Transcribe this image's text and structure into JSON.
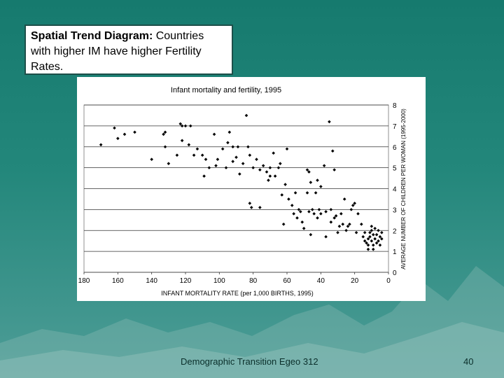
{
  "slide": {
    "title_bold": "Spatial Trend Diagram:",
    "title_rest": " Countries with higher IM have higher Fertility Rates.",
    "footer": "Demographic Transition Egeo 312",
    "page_number": "40",
    "background_color": "#1e8276",
    "accent_color": "#1d4f49"
  },
  "chart_data": {
    "type": "scatter",
    "title": "Infant mortality and fertility, 1995",
    "xlabel": "INFANT MORTALITY RATE (per 1,000 BIRTHS, 1995)",
    "ylabel": "AVERAGE NUMBER OF CHILDREN PER WOMAN (1995-2000)",
    "xlim": [
      180,
      0
    ],
    "ylim": [
      0,
      8
    ],
    "x_ticks": [
      180,
      160,
      140,
      120,
      100,
      80,
      60,
      40,
      20,
      0
    ],
    "y_ticks": [
      0,
      1,
      2,
      3,
      4,
      5,
      6,
      7,
      8
    ],
    "grid": "horizontal",
    "series": [
      {
        "name": "Countries",
        "points": [
          [
            170,
            6.1
          ],
          [
            162,
            6.9
          ],
          [
            160,
            6.4
          ],
          [
            156,
            6.6
          ],
          [
            150,
            6.7
          ],
          [
            140,
            5.4
          ],
          [
            133,
            6.6
          ],
          [
            132,
            6.7
          ],
          [
            132,
            6.0
          ],
          [
            130,
            5.2
          ],
          [
            125,
            5.6
          ],
          [
            123,
            7.1
          ],
          [
            122,
            7.0
          ],
          [
            122,
            6.3
          ],
          [
            120,
            7.0
          ],
          [
            118,
            6.1
          ],
          [
            117,
            7.0
          ],
          [
            115,
            5.6
          ],
          [
            113,
            5.9
          ],
          [
            110,
            5.6
          ],
          [
            109,
            4.6
          ],
          [
            108,
            5.4
          ],
          [
            106,
            5.0
          ],
          [
            103,
            6.6
          ],
          [
            102,
            5.1
          ],
          [
            101,
            5.4
          ],
          [
            98,
            5.9
          ],
          [
            96,
            5.0
          ],
          [
            95,
            6.2
          ],
          [
            94,
            6.7
          ],
          [
            92,
            5.3
          ],
          [
            92,
            6.0
          ],
          [
            90,
            5.5
          ],
          [
            89,
            6.0
          ],
          [
            88,
            4.7
          ],
          [
            86,
            5.2
          ],
          [
            84,
            7.5
          ],
          [
            83,
            6.0
          ],
          [
            82,
            5.6
          ],
          [
            82,
            3.3
          ],
          [
            81,
            3.1
          ],
          [
            80,
            5.0
          ],
          [
            78,
            5.4
          ],
          [
            76,
            4.9
          ],
          [
            76,
            3.1
          ],
          [
            74,
            5.1
          ],
          [
            72,
            4.8
          ],
          [
            71,
            4.4
          ],
          [
            70,
            4.6
          ],
          [
            70,
            5.0
          ],
          [
            68,
            5.7
          ],
          [
            67,
            4.6
          ],
          [
            65,
            5.0
          ],
          [
            64,
            5.2
          ],
          [
            63,
            3.7
          ],
          [
            62,
            2.3
          ],
          [
            61,
            4.2
          ],
          [
            60,
            5.9
          ],
          [
            59,
            3.5
          ],
          [
            57,
            3.2
          ],
          [
            56,
            2.8
          ],
          [
            55,
            3.8
          ],
          [
            54,
            2.6
          ],
          [
            53,
            3.0
          ],
          [
            52,
            2.9
          ],
          [
            51,
            2.4
          ],
          [
            50,
            2.1
          ],
          [
            48,
            4.9
          ],
          [
            48,
            3.8
          ],
          [
            47,
            2.9
          ],
          [
            47,
            4.8
          ],
          [
            46,
            4.3
          ],
          [
            46,
            1.8
          ],
          [
            45,
            3.0
          ],
          [
            44,
            2.8
          ],
          [
            43,
            3.8
          ],
          [
            42,
            4.4
          ],
          [
            42,
            2.6
          ],
          [
            41,
            3.0
          ],
          [
            40,
            4.1
          ],
          [
            40,
            2.8
          ],
          [
            38,
            5.1
          ],
          [
            37,
            1.7
          ],
          [
            37,
            2.9
          ],
          [
            35,
            7.2
          ],
          [
            34,
            2.4
          ],
          [
            34,
            3.0
          ],
          [
            33,
            5.8
          ],
          [
            32,
            4.9
          ],
          [
            32,
            2.6
          ],
          [
            31,
            2.7
          ],
          [
            30,
            1.9
          ],
          [
            29,
            2.2
          ],
          [
            28,
            2.8
          ],
          [
            27,
            2.3
          ],
          [
            26,
            3.5
          ],
          [
            25,
            2.0
          ],
          [
            24,
            2.2
          ],
          [
            23,
            2.3
          ],
          [
            22,
            3.0
          ],
          [
            21,
            3.2
          ],
          [
            20,
            3.3
          ],
          [
            19,
            1.9
          ],
          [
            18,
            2.8
          ],
          [
            16,
            2.3
          ],
          [
            15,
            1.7
          ],
          [
            14,
            1.5
          ],
          [
            13,
            1.4
          ],
          [
            12,
            1.6
          ],
          [
            12,
            1.3
          ],
          [
            11,
            1.9
          ],
          [
            11,
            1.7
          ],
          [
            10,
            1.5
          ],
          [
            10,
            2.0
          ],
          [
            9,
            1.8
          ],
          [
            9,
            1.3
          ],
          [
            8,
            1.6
          ],
          [
            8,
            2.1
          ],
          [
            7,
            1.4
          ],
          [
            7,
            1.8
          ],
          [
            6,
            1.5
          ],
          [
            6,
            2.0
          ],
          [
            5,
            1.7
          ],
          [
            5,
            1.3
          ],
          [
            4,
            1.6
          ],
          [
            4,
            1.9
          ],
          [
            12,
            1.1
          ],
          [
            9,
            1.1
          ],
          [
            14,
            1.9
          ],
          [
            10,
            2.2
          ]
        ]
      }
    ]
  }
}
